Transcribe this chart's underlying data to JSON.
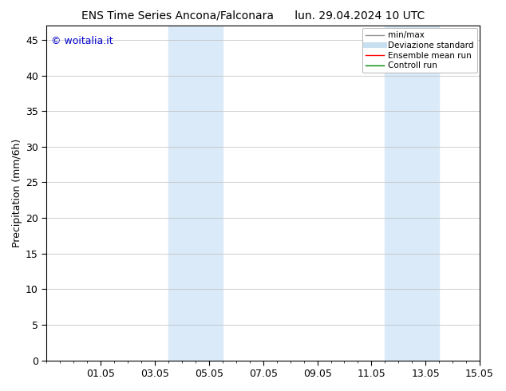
{
  "title_left": "ENS Time Series Ancona/Falconara",
  "title_right": "lun. 29.04.2024 10 UTC",
  "ylabel": "Precipitation (mm/6h)",
  "watermark": "© woitalia.it",
  "watermark_color": "#0000cc",
  "ylim": [
    0,
    47
  ],
  "yticks": [
    0,
    5,
    10,
    15,
    20,
    25,
    30,
    35,
    40,
    45
  ],
  "xlim": [
    0,
    16
  ],
  "xtick_labels": [
    "01.05",
    "03.05",
    "05.05",
    "07.05",
    "09.05",
    "11.05",
    "13.05",
    "15.05"
  ],
  "xtick_positions": [
    2,
    4,
    6,
    8,
    10,
    12,
    14,
    16
  ],
  "shaded_regions": [
    {
      "xstart": 4.5,
      "xend": 6.5,
      "color": "#daeaf8"
    },
    {
      "xstart": 12.5,
      "xend": 14.5,
      "color": "#daeaf8"
    }
  ],
  "legend_entries": [
    {
      "label": "min/max",
      "color": "#999999",
      "lw": 1.0,
      "type": "line"
    },
    {
      "label": "Deviazione standard",
      "color": "#c8dff0",
      "lw": 5,
      "type": "line"
    },
    {
      "label": "Ensemble mean run",
      "color": "#ff0000",
      "lw": 1.0,
      "type": "line"
    },
    {
      "label": "Controll run",
      "color": "#008800",
      "lw": 1.0,
      "type": "line"
    }
  ],
  "bg_color": "#ffffff",
  "spine_color": "#000000",
  "grid_color": "#bbbbbb",
  "font_size": 9,
  "title_font_size": 10,
  "watermark_font_size": 9
}
